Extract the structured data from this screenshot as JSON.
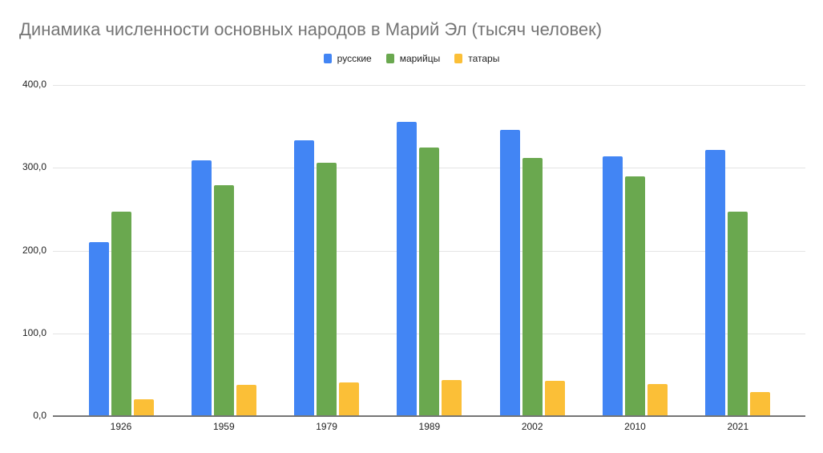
{
  "chart_data": {
    "type": "bar",
    "title": "Динамика численности основных народов в Марий Эл (тысяч человек)",
    "xlabel": "",
    "ylabel": "",
    "categories": [
      "1926",
      "1959",
      "1979",
      "1989",
      "2002",
      "2010",
      "2021"
    ],
    "series": [
      {
        "name": "русские",
        "color": "#4285f4",
        "values": [
          210,
          309,
          333,
          355,
          346,
          314,
          322
        ]
      },
      {
        "name": "марийцы",
        "color": "#6aa84f",
        "values": [
          247,
          279,
          306,
          324,
          312,
          290,
          247
        ]
      },
      {
        "name": "татары",
        "color": "#fbbc04",
        "values": [
          20,
          38,
          41,
          44,
          43,
          39,
          29
        ]
      }
    ],
    "ylim": [
      0,
      400
    ],
    "yticks": [
      "0,0",
      "100,0",
      "200,0",
      "300,0",
      "400,0"
    ],
    "grid": true,
    "legend_position": "top"
  },
  "title": "Динамика численности основных народов в Марий Эл (тысяч человек)",
  "legend": [
    {
      "label": "русские",
      "color": "#4285f4"
    },
    {
      "label": "марийцы",
      "color": "#6aa84f"
    },
    {
      "label": "татары",
      "color": "#fbbf37"
    }
  ]
}
